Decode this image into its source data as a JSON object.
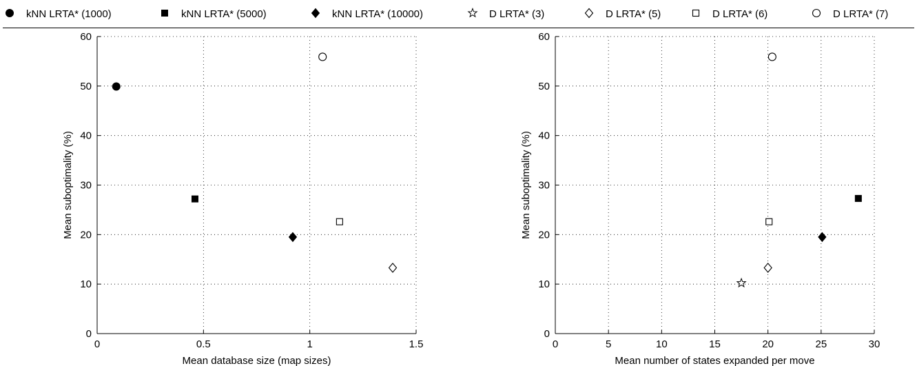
{
  "legend": [
    {
      "marker": "filled-circle",
      "label": "kNN LRTA* (1000)"
    },
    {
      "marker": "filled-square",
      "label": "kNN LRTA* (5000)"
    },
    {
      "marker": "filled-diamond",
      "label": "kNN LRTA* (10000)"
    },
    {
      "marker": "open-star",
      "label": "D LRTA* (3)"
    },
    {
      "marker": "open-diamond",
      "label": "D LRTA* (5)"
    },
    {
      "marker": "open-square",
      "label": "D LRTA* (6)"
    },
    {
      "marker": "open-circle",
      "label": "D LRTA* (7)"
    }
  ],
  "chart_data": [
    {
      "type": "scatter",
      "xlabel": "Mean database size (map sizes)",
      "ylabel": "Mean suboptimality (%)",
      "xlim": [
        0,
        1.5
      ],
      "ylim": [
        0,
        60
      ],
      "xticks": [
        0,
        0.5,
        1,
        1.5
      ],
      "xtick_labels": [
        "0",
        "0.5",
        "1",
        "1.5"
      ],
      "yticks": [
        0,
        10,
        20,
        30,
        40,
        50,
        60
      ],
      "ytick_labels": [
        "0",
        "10",
        "20",
        "30",
        "40",
        "50",
        "60"
      ],
      "grid": true,
      "series": [
        {
          "name": "kNN LRTA* (1000)",
          "marker": "filled-circle",
          "points": [
            [
              0.09,
              49.9
            ]
          ]
        },
        {
          "name": "kNN LRTA* (5000)",
          "marker": "filled-square",
          "points": [
            [
              0.46,
              27.2
            ]
          ]
        },
        {
          "name": "kNN LRTA* (10000)",
          "marker": "filled-diamond",
          "points": [
            [
              0.92,
              19.5
            ]
          ]
        },
        {
          "name": "D LRTA* (5)",
          "marker": "open-diamond",
          "points": [
            [
              1.39,
              13.3
            ]
          ]
        },
        {
          "name": "D LRTA* (6)",
          "marker": "open-square",
          "points": [
            [
              1.14,
              22.6
            ]
          ]
        },
        {
          "name": "D LRTA* (7)",
          "marker": "open-circle",
          "points": [
            [
              1.06,
              55.9
            ]
          ]
        }
      ]
    },
    {
      "type": "scatter",
      "xlabel": "Mean number of states expanded per move",
      "ylabel": "Mean suboptimality (%)",
      "xlim": [
        0,
        30
      ],
      "ylim": [
        0,
        60
      ],
      "xticks": [
        0,
        5,
        10,
        15,
        20,
        25,
        30
      ],
      "xtick_labels": [
        "0",
        "5",
        "10",
        "15",
        "20",
        "25",
        "30"
      ],
      "yticks": [
        0,
        10,
        20,
        30,
        40,
        50,
        60
      ],
      "ytick_labels": [
        "0",
        "10",
        "20",
        "30",
        "40",
        "50",
        "60"
      ],
      "grid": true,
      "series": [
        {
          "name": "kNN LRTA* (5000)",
          "marker": "filled-square",
          "points": [
            [
              28.5,
              27.3
            ]
          ]
        },
        {
          "name": "kNN LRTA* (10000)",
          "marker": "filled-diamond",
          "points": [
            [
              25.1,
              19.5
            ]
          ]
        },
        {
          "name": "D LRTA* (3)",
          "marker": "open-star",
          "points": [
            [
              17.5,
              10.2
            ]
          ]
        },
        {
          "name": "D LRTA* (5)",
          "marker": "open-diamond",
          "points": [
            [
              20.0,
              13.3
            ]
          ]
        },
        {
          "name": "D LRTA* (6)",
          "marker": "open-square",
          "points": [
            [
              20.1,
              22.6
            ]
          ]
        },
        {
          "name": "D LRTA* (7)",
          "marker": "open-circle",
          "points": [
            [
              20.4,
              55.9
            ]
          ]
        }
      ]
    }
  ]
}
